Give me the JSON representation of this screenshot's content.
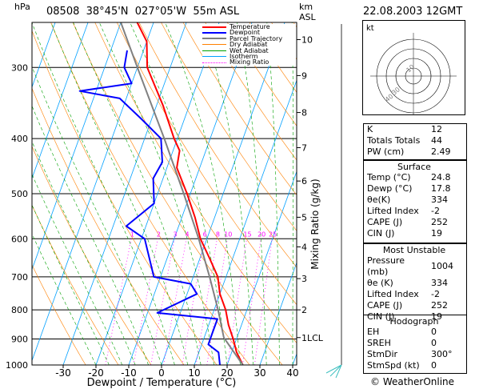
{
  "header": {
    "station": "08508",
    "lat": "38°45'N",
    "lon": "027°05'W",
    "elev": "55m",
    "asl": "ASL",
    "date": "22.08.2003 12GMT",
    "hpa_label": "hPa",
    "km_label": "km",
    "km_asl": "ASL"
  },
  "colors": {
    "temperature": "#ff0000",
    "dewpoint": "#0000ff",
    "parcel": "#808080",
    "dry_adiabat": "#ff8000",
    "wet_adiabat": "#00a000",
    "isotherm": "#00a0ff",
    "mixing_ratio": "#ff00ff"
  },
  "legend": [
    "Temperature",
    "Dewpoint",
    "Parcel Trajectory",
    "Dry Adiabat",
    "Wet Adiabat",
    "Isotherm",
    "Mixing Ratio"
  ],
  "chart_data": {
    "type": "line",
    "xlabel": "Dewpoint / Temperature (°C)",
    "ylabel": "hPa",
    "right_label": "Mixing Ratio (g/kg)",
    "x_ticks": [
      -30,
      -20,
      -10,
      0,
      10,
      20,
      30,
      40
    ],
    "p_ticks": [
      300,
      400,
      500,
      600,
      700,
      800,
      900,
      1000
    ],
    "km_ticks": [
      {
        "km": "1LCL",
        "p": 895
      },
      {
        "km": "2",
        "p": 800
      },
      {
        "km": "3",
        "p": 705
      },
      {
        "km": "4",
        "p": 620
      },
      {
        "km": "5",
        "p": 550
      },
      {
        "km": "6",
        "p": 475
      },
      {
        "km": "7",
        "p": 415
      },
      {
        "km": "8",
        "p": 360
      },
      {
        "km": "9",
        "p": 310
      },
      {
        "km": "10",
        "p": 268
      }
    ],
    "mixing_ratio_labels": [
      "1",
      "2",
      "3",
      "4",
      "6",
      "8",
      "10",
      "15",
      "20",
      "25"
    ],
    "series": [
      {
        "name": "Temperature",
        "points": [
          [
            1000,
            24.8
          ],
          [
            950,
            21.5
          ],
          [
            900,
            19
          ],
          [
            850,
            16
          ],
          [
            800,
            13.5
          ],
          [
            750,
            10
          ],
          [
            700,
            7.5
          ],
          [
            650,
            3
          ],
          [
            600,
            -2
          ],
          [
            550,
            -6
          ],
          [
            500,
            -11
          ],
          [
            450,
            -17
          ],
          [
            420,
            -18
          ],
          [
            400,
            -21
          ],
          [
            350,
            -28
          ],
          [
            300,
            -37
          ],
          [
            270,
            -40
          ],
          [
            250,
            -45
          ]
        ]
      },
      {
        "name": "Dewpoint",
        "points": [
          [
            1000,
            17.8
          ],
          [
            950,
            16
          ],
          [
            920,
            12
          ],
          [
            880,
            12
          ],
          [
            830,
            12
          ],
          [
            810,
            -7
          ],
          [
            750,
            3
          ],
          [
            720,
            0
          ],
          [
            700,
            -12
          ],
          [
            600,
            -19
          ],
          [
            570,
            -26
          ],
          [
            520,
            -20
          ],
          [
            470,
            -23
          ],
          [
            440,
            -22
          ],
          [
            400,
            -25
          ],
          [
            370,
            -33
          ],
          [
            340,
            -42
          ],
          [
            330,
            -55
          ],
          [
            320,
            -40
          ],
          [
            300,
            -44
          ],
          [
            280,
            -45
          ]
        ]
      },
      {
        "name": "Parcel Trajectory",
        "points": [
          [
            1000,
            24.8
          ],
          [
            895,
            16
          ],
          [
            800,
            11.2
          ],
          [
            700,
            5
          ],
          [
            600,
            -2.5
          ],
          [
            500,
            -12
          ],
          [
            400,
            -24
          ],
          [
            300,
            -40
          ],
          [
            250,
            -50
          ]
        ]
      }
    ],
    "grid": true
  },
  "hodograph": {
    "label": "kt",
    "rings": [
      "10",
      "20",
      "30",
      "40"
    ],
    "ring_labels": [
      "10",
      "30",
      "40"
    ]
  },
  "indices": {
    "rows": [
      [
        "K",
        "12"
      ],
      [
        "Totals Totals",
        "44"
      ],
      [
        "PW (cm)",
        "2.49"
      ]
    ],
    "surface_title": "Surface",
    "surface": [
      [
        "Temp (°C)",
        "24.8"
      ],
      [
        "Dewp (°C)",
        "17.8"
      ],
      [
        "θe(K)",
        "334"
      ],
      [
        "Lifted Index",
        "-2"
      ],
      [
        "CAPE (J)",
        "252"
      ],
      [
        "CIN (J)",
        "19"
      ]
    ],
    "mu_title": "Most Unstable",
    "mu": [
      [
        "Pressure (mb)",
        "1004"
      ],
      [
        "θe (K)",
        "334"
      ],
      [
        "Lifted Index",
        "-2"
      ],
      [
        "CAPE (J)",
        "252"
      ],
      [
        "CIN (J)",
        "19"
      ]
    ],
    "hodo_title": "Hodograph",
    "hodo": [
      [
        "EH",
        "0"
      ],
      [
        "SREH",
        "0"
      ],
      [
        "StmDir",
        "300°"
      ],
      [
        "StmSpd (kt)",
        "0"
      ]
    ]
  },
  "footer": {
    "copyright": "© WeatherOnline"
  }
}
